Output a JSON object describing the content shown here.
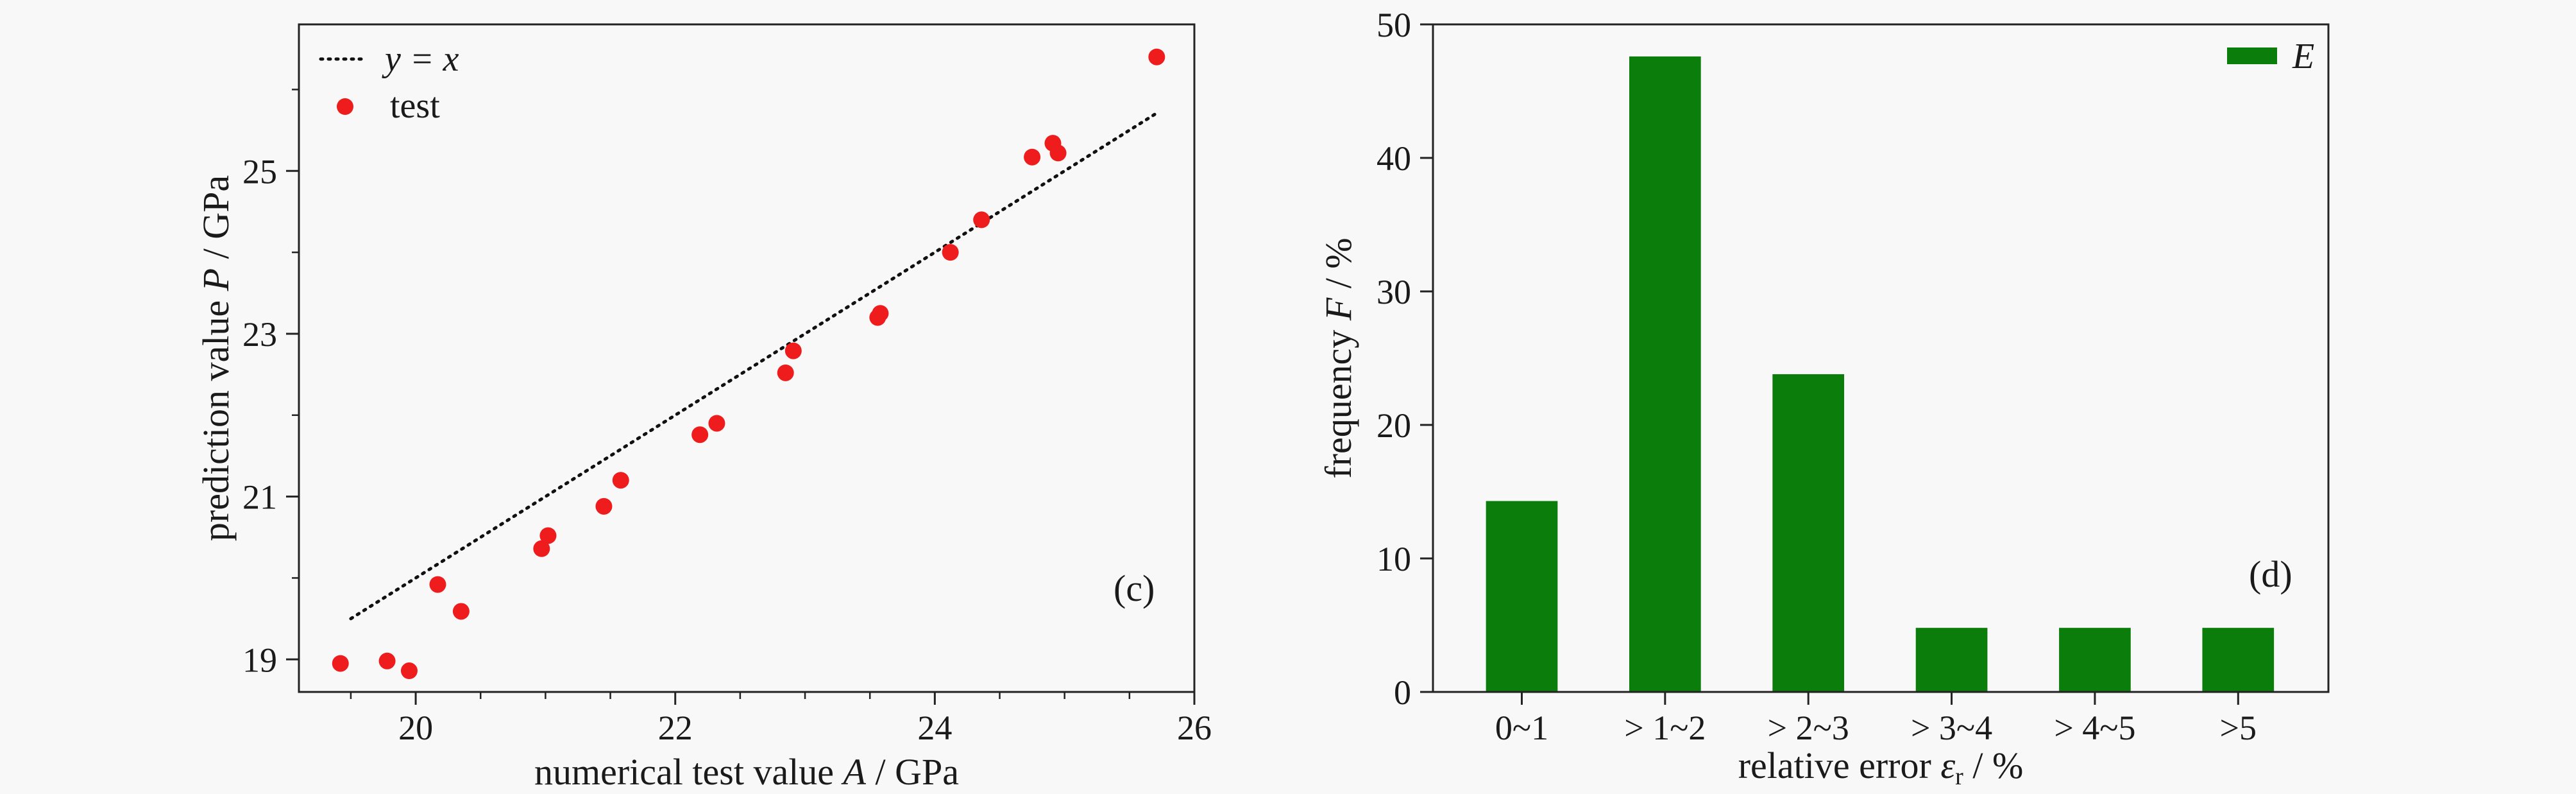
{
  "chart_data": [
    {
      "panel": "(c)",
      "type": "scatter",
      "xlabel": {
        "prefix": "numerical test value ",
        "symbol": "A",
        "suffix": " / GPa"
      },
      "ylabel": {
        "prefix": "prediction value ",
        "symbol": "P",
        "suffix": " / GPa"
      },
      "xlim": [
        19.1,
        26.0
      ],
      "ylim": [
        18.6,
        26.8
      ],
      "xticks": [
        20,
        22,
        24,
        26
      ],
      "yticks": [
        19,
        21,
        23,
        25
      ],
      "legend": {
        "position": "top-left",
        "entries": [
          {
            "label": "y = x",
            "style": "dotted-line"
          },
          {
            "label": "test",
            "style": "marker"
          }
        ]
      },
      "reference_line": {
        "label": "y = x",
        "x": [
          19.5,
          25.7
        ],
        "y": [
          19.5,
          25.7
        ]
      },
      "series": [
        {
          "name": "test",
          "color": "#ee1c1c",
          "x": [
            19.42,
            19.78,
            19.95,
            20.17,
            20.35,
            20.97,
            21.02,
            21.45,
            21.58,
            22.19,
            22.32,
            22.85,
            22.91,
            23.56,
            23.58,
            24.12,
            24.36,
            24.75,
            24.91,
            24.95,
            25.71
          ],
          "y": [
            18.95,
            18.98,
            18.86,
            19.92,
            19.59,
            20.36,
            20.52,
            20.88,
            21.2,
            21.76,
            21.9,
            22.52,
            22.79,
            23.2,
            23.25,
            24.0,
            24.4,
            25.17,
            25.34,
            25.22,
            26.4
          ]
        }
      ],
      "grid": false
    },
    {
      "panel": "(d)",
      "type": "bar",
      "xlabel": {
        "prefix": "relative error ",
        "symbol": "ε",
        "subscript": "r",
        "suffix": " / %"
      },
      "ylabel": {
        "prefix": "frequency ",
        "symbol": "F",
        "suffix": " / %"
      },
      "categories": [
        "0~1",
        "> 1~2",
        "> 2~3",
        "> 3~4",
        "> 4~5",
        ">5"
      ],
      "series": [
        {
          "name": "E",
          "color": "#0a7d0a",
          "values": [
            14.3,
            47.6,
            23.8,
            4.8,
            4.8,
            4.8
          ]
        }
      ],
      "ylim": [
        0,
        50
      ],
      "yticks": [
        0,
        10,
        20,
        30,
        40,
        50
      ],
      "legend": {
        "position": "top-right",
        "entries": [
          {
            "label": "E",
            "style": "patch"
          }
        ]
      },
      "grid": false
    }
  ]
}
